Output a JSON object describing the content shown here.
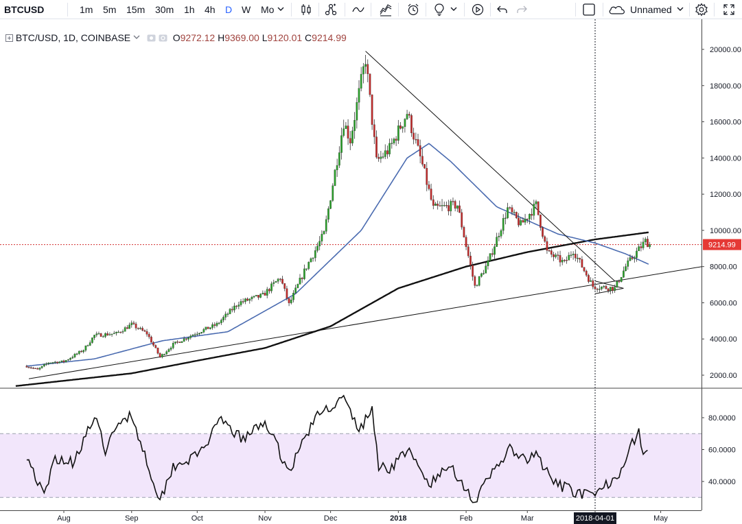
{
  "toolbar": {
    "symbol": "BTCUSD",
    "intervals": [
      "1m",
      "5m",
      "15m",
      "30m",
      "1h",
      "4h",
      "D",
      "W",
      "Mo"
    ],
    "active_interval": "D",
    "layout_name": "Unnamed"
  },
  "legend": {
    "title": "BTC/USD, 1D, COINBASE",
    "o_label": "O",
    "o_value": "9272.12",
    "h_label": "H",
    "h_value": "9369.00",
    "l_label": "L",
    "l_value": "9120.01",
    "c_label": "C",
    "c_value": "9214.99"
  },
  "chart_data": [
    {
      "type": "candlestick",
      "symbol": "BTC/USD",
      "interval": "1D",
      "exchange": "COINBASE",
      "y_range": [
        1000,
        21000
      ],
      "y_ticks": [
        2000,
        4000,
        6000,
        8000,
        10000,
        12000,
        14000,
        16000,
        18000,
        20000
      ],
      "y_tick_labels": [
        "2000.00",
        "4000.00",
        "6000.00",
        "8000.00",
        "10000.00",
        "12000.00",
        "14000.00",
        "16000.00",
        "18000.00",
        "20000.00"
      ],
      "x_tick_labels": [
        "Aug",
        "Sep",
        "Oct",
        "Nov",
        "Dec",
        "2018",
        "Feb",
        "Mar",
        "2018-04-01",
        "May"
      ],
      "last_price": "9214.99",
      "price_path": [
        [
          "2017-07-15",
          2500
        ],
        [
          "2017-07-20",
          2300
        ],
        [
          "2017-07-25",
          2700
        ],
        [
          "2017-08-01",
          2750
        ],
        [
          "2017-08-10",
          3400
        ],
        [
          "2017-08-15",
          4200
        ],
        [
          "2017-08-25",
          4300
        ],
        [
          "2017-09-01",
          4800
        ],
        [
          "2017-09-08",
          4300
        ],
        [
          "2017-09-14",
          3000
        ],
        [
          "2017-09-20",
          3700
        ],
        [
          "2017-09-30",
          4300
        ],
        [
          "2017-10-10",
          4800
        ],
        [
          "2017-10-20",
          6000
        ],
        [
          "2017-10-31",
          6400
        ],
        [
          "2017-11-08",
          7400
        ],
        [
          "2017-11-12",
          5900
        ],
        [
          "2017-11-20",
          8000
        ],
        [
          "2017-11-28",
          9800
        ],
        [
          "2017-12-07",
          16000
        ],
        [
          "2017-12-10",
          15000
        ],
        [
          "2017-12-17",
          19500
        ],
        [
          "2017-12-22",
          13800
        ],
        [
          "2017-12-28",
          14500
        ],
        [
          "2018-01-05",
          16500
        ],
        [
          "2018-01-12",
          13600
        ],
        [
          "2018-01-17",
          11200
        ],
        [
          "2018-01-28",
          11400
        ],
        [
          "2018-02-05",
          6900
        ],
        [
          "2018-02-11",
          8200
        ],
        [
          "2018-02-20",
          11200
        ],
        [
          "2018-02-26",
          10300
        ],
        [
          "2018-03-05",
          11400
        ],
        [
          "2018-03-10",
          8800
        ],
        [
          "2018-03-18",
          8200
        ],
        [
          "2018-03-22",
          8900
        ],
        [
          "2018-03-31",
          6900
        ],
        [
          "2018-04-10",
          6800
        ],
        [
          "2018-04-15",
          8000
        ],
        [
          "2018-04-20",
          8800
        ],
        [
          "2018-04-24",
          9400
        ],
        [
          "2018-04-26",
          9215
        ]
      ],
      "ma_fast_path": [
        [
          "2017-07-15",
          2500
        ],
        [
          "2017-08-15",
          2900
        ],
        [
          "2017-09-15",
          3900
        ],
        [
          "2017-10-15",
          4400
        ],
        [
          "2017-11-15",
          6500
        ],
        [
          "2017-12-15",
          10000
        ],
        [
          "2018-01-05",
          14000
        ],
        [
          "2018-01-15",
          14800
        ],
        [
          "2018-01-25",
          13800
        ],
        [
          "2018-02-15",
          11300
        ],
        [
          "2018-03-15",
          9800
        ],
        [
          "2018-04-01",
          9300
        ],
        [
          "2018-04-15",
          8700
        ],
        [
          "2018-04-26",
          8100
        ]
      ],
      "ma_slow_path": [
        [
          "2017-07-10",
          1400
        ],
        [
          "2017-09-01",
          2100
        ],
        [
          "2017-10-01",
          2800
        ],
        [
          "2017-11-01",
          3500
        ],
        [
          "2017-12-01",
          4700
        ],
        [
          "2018-01-01",
          6800
        ],
        [
          "2018-02-01",
          8000
        ],
        [
          "2018-03-01",
          8800
        ],
        [
          "2018-04-01",
          9500
        ],
        [
          "2018-04-26",
          9900
        ]
      ],
      "trendlines": [
        {
          "kind": "downtrend",
          "from": [
            "2017-12-17",
            19900
          ],
          "to": [
            "2018-04-10",
            7200
          ]
        },
        {
          "kind": "uptrend",
          "from": [
            "2017-07-16",
            1800
          ],
          "to": [
            "2018-05-20",
            8000
          ]
        },
        {
          "kind": "wedge-upper",
          "from": [
            "2018-04-01",
            7200
          ],
          "to": [
            "2018-04-14",
            6800
          ]
        },
        {
          "kind": "wedge-lower",
          "from": [
            "2018-04-01",
            6500
          ],
          "to": [
            "2018-04-14",
            6800
          ]
        }
      ]
    },
    {
      "type": "line",
      "indicator": "RSI",
      "y_range": [
        25,
        95
      ],
      "y_ticks": [
        40,
        60,
        80
      ],
      "y_tick_labels": [
        "40.0000",
        "60.0000",
        "80.0000"
      ],
      "overbought": 70,
      "oversold": 30,
      "values_path": [
        [
          "2017-07-15",
          57
        ],
        [
          "2017-07-20",
          40
        ],
        [
          "2017-07-23",
          30
        ],
        [
          "2017-07-28",
          55
        ],
        [
          "2017-08-05",
          52
        ],
        [
          "2017-08-15",
          80
        ],
        [
          "2017-08-20",
          60
        ],
        [
          "2017-08-28",
          80
        ],
        [
          "2017-09-01",
          82
        ],
        [
          "2017-09-05",
          65
        ],
        [
          "2017-09-14",
          28
        ],
        [
          "2017-09-20",
          50
        ],
        [
          "2017-10-01",
          56
        ],
        [
          "2017-10-12",
          78
        ],
        [
          "2017-10-22",
          66
        ],
        [
          "2017-11-01",
          78
        ],
        [
          "2017-11-12",
          46
        ],
        [
          "2017-11-20",
          70
        ],
        [
          "2017-11-26",
          83
        ],
        [
          "2017-12-07",
          92
        ],
        [
          "2017-12-14",
          72
        ],
        [
          "2017-12-20",
          85
        ],
        [
          "2017-12-23",
          50
        ],
        [
          "2017-12-28",
          48
        ],
        [
          "2018-01-05",
          60
        ],
        [
          "2018-01-15",
          38
        ],
        [
          "2018-01-25",
          50
        ],
        [
          "2018-02-05",
          27
        ],
        [
          "2018-02-15",
          50
        ],
        [
          "2018-02-21",
          60
        ],
        [
          "2018-03-01",
          52
        ],
        [
          "2018-03-05",
          58
        ],
        [
          "2018-03-12",
          40
        ],
        [
          "2018-03-20",
          35
        ],
        [
          "2018-03-31",
          30
        ],
        [
          "2018-04-05",
          36
        ],
        [
          "2018-04-12",
          46
        ],
        [
          "2018-04-18",
          64
        ],
        [
          "2018-04-21",
          72
        ],
        [
          "2018-04-23",
          56
        ],
        [
          "2018-04-26",
          60
        ]
      ]
    }
  ]
}
